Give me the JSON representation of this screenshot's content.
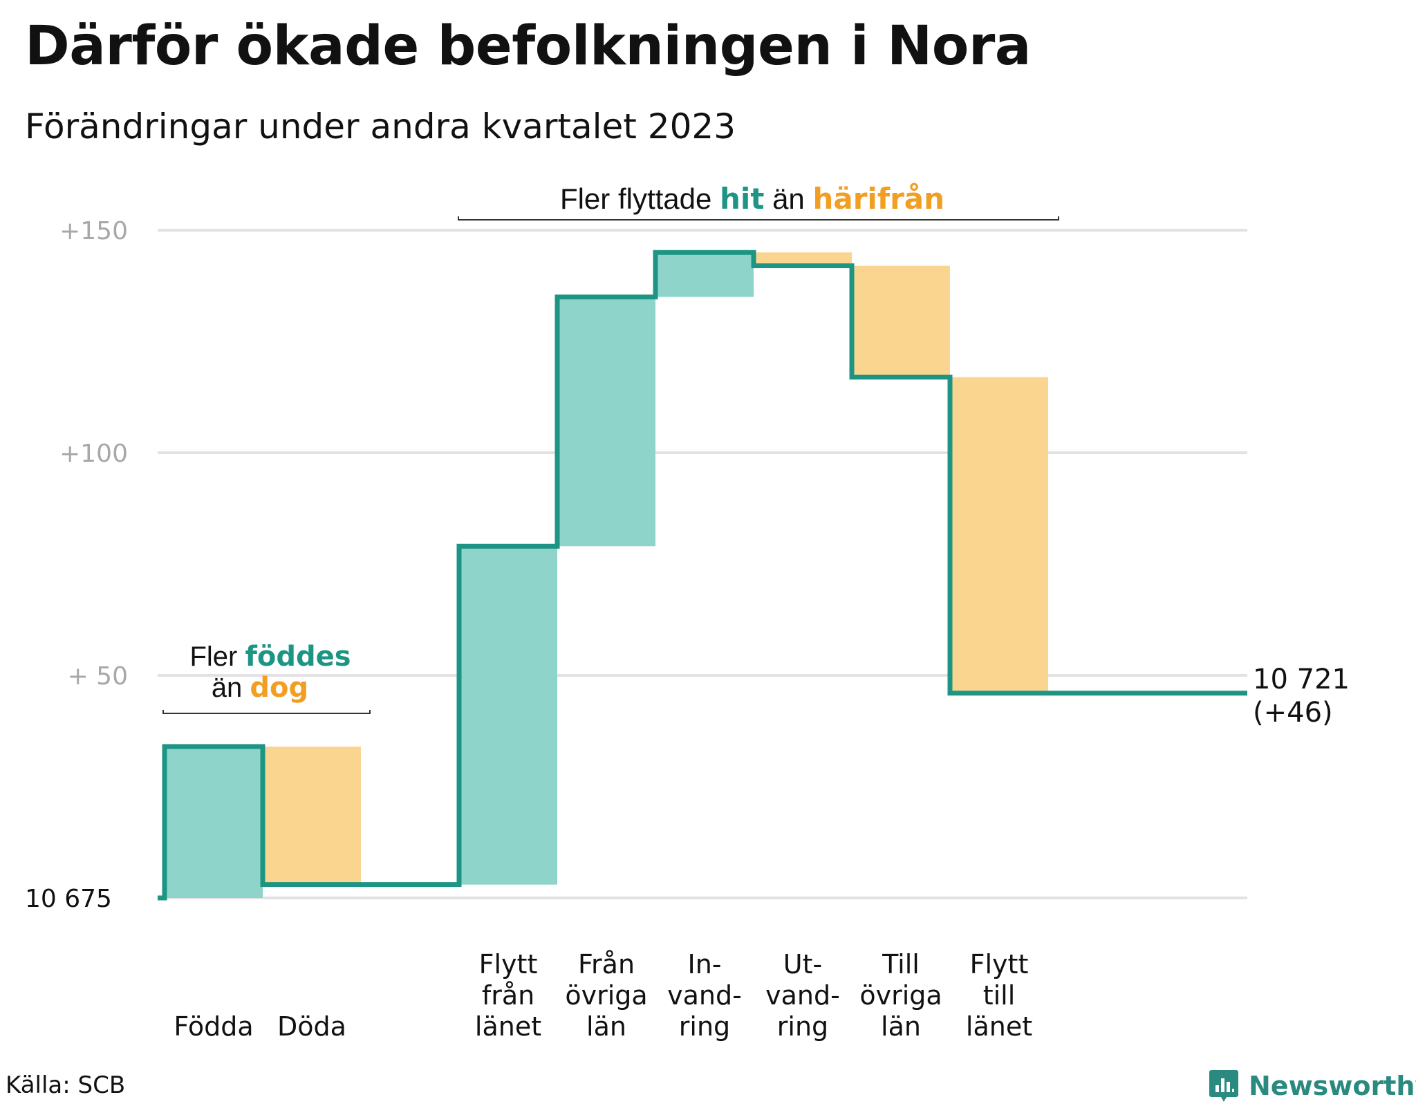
{
  "colors": {
    "increase": "#8ED4CB",
    "decrease": "#FAD58F",
    "line": "#1E9584",
    "teal_text": "#1E9584",
    "orange_text": "#F19E22",
    "grid": "#e2e2e2",
    "tick": "#a8a8a8"
  },
  "title": "Därför ökade befolkningen i Nora",
  "subtitle": "Förändringar under andra kvartalet 2023",
  "source": "Källa: SCB",
  "brand": {
    "name": "Newsworthy",
    "icon": "newsworthy-bar-chart-icon"
  },
  "annotations": {
    "birth": {
      "pre": "Fler ",
      "highlight1": "föddes",
      "mid": "än ",
      "highlight2": "dog"
    },
    "migration": {
      "pre": "Fler flyttade ",
      "highlight1": "hit",
      "mid": " än ",
      "highlight2": "härifrån"
    }
  },
  "chart_data": {
    "type": "waterfall",
    "base_value": 10675,
    "base_label": "10  675",
    "final_label_line1": "10 721",
    "final_label_line2": "(+46)",
    "ylim": [
      0,
      150
    ],
    "yticks": [
      {
        "value": 50,
        "label": "+  50"
      },
      {
        "value": 100,
        "label": "+100"
      },
      {
        "value": 150,
        "label": "+150"
      }
    ],
    "grid": true,
    "steps": [
      {
        "label": [
          "Födda"
        ],
        "change": 34,
        "kind": "increase"
      },
      {
        "label": [
          "Döda"
        ],
        "change": -31,
        "kind": "decrease"
      },
      {
        "label": [],
        "change": 0,
        "kind": "gap"
      },
      {
        "label": [
          "Flytt",
          "från",
          "länet"
        ],
        "change": 76,
        "kind": "increase"
      },
      {
        "label": [
          "Från",
          "övriga",
          "län"
        ],
        "change": 56,
        "kind": "increase"
      },
      {
        "label": [
          "In-",
          "vand-",
          "ring"
        ],
        "change": 10,
        "kind": "increase"
      },
      {
        "label": [
          "Ut-",
          "vand-",
          "ring"
        ],
        "change": -3,
        "kind": "decrease"
      },
      {
        "label": [
          "Till",
          "övriga",
          "län"
        ],
        "change": -25,
        "kind": "decrease"
      },
      {
        "label": [
          "Flytt",
          "till",
          "länet"
        ],
        "change": -71,
        "kind": "decrease"
      }
    ],
    "final_change": 46
  }
}
